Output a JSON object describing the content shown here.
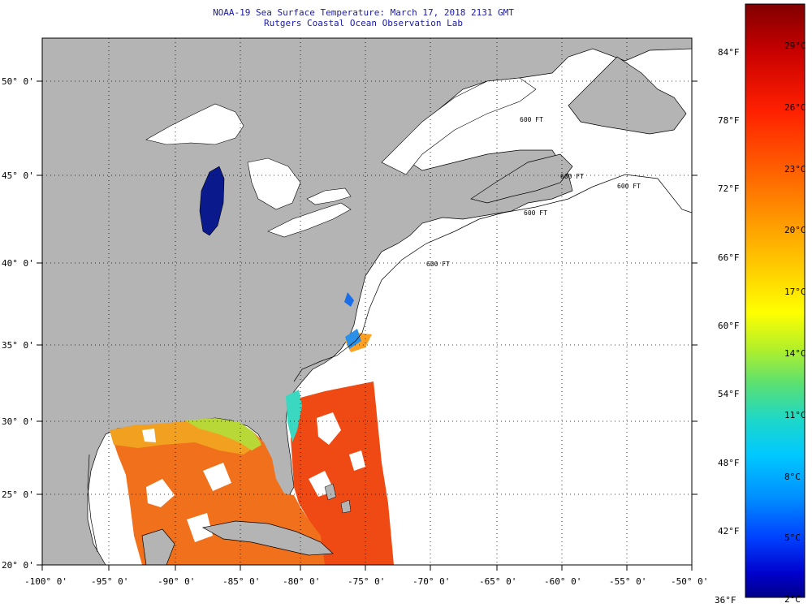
{
  "header": {
    "title": "NOAA-19 Sea Surface Temperature:  March 17, 2018 2131 GMT",
    "subtitle": "Rutgers Coastal Ocean Observation Lab"
  },
  "axes": {
    "lon_labels": [
      "-100° 0'",
      "-95° 0'",
      "-90° 0'",
      "-85° 0'",
      "-80° 0'",
      "-75° 0'",
      "-70° 0'",
      "-65° 0'",
      "-60° 0'",
      "-55° 0'",
      "-50° 0'"
    ],
    "lat_labels": [
      "50° 0'",
      "45° 0'",
      "40° 0'",
      "35° 0'",
      "30° 0'",
      "25° 0'",
      "20° 0'"
    ]
  },
  "colorbar": {
    "fahrenheit_labels": [
      "84°F",
      "78°F",
      "72°F",
      "66°F",
      "60°F",
      "54°F",
      "48°F",
      "42°F",
      "36°F"
    ],
    "celsius_labels": [
      "29°C",
      "26°C",
      "23°C",
      "20°C",
      "17°C",
      "14°C",
      "11°C",
      "8°C",
      "5°C",
      "2°C"
    ],
    "colors": [
      "#800000",
      "#c80000",
      "#ff2000",
      "#ff6000",
      "#ff9000",
      "#ffc000",
      "#ffff00",
      "#b0f000",
      "#60e060",
      "#20d8b0",
      "#00d0ff",
      "#0090ff",
      "#0040ff",
      "#0000d0",
      "#000090"
    ]
  },
  "contours": {
    "labels": [
      "600 FT",
      "600 FT",
      "600 FT",
      "600 FT",
      "600 FT"
    ]
  },
  "map_colors": {
    "land": "#b4b4b4",
    "no_data": "#ffffff",
    "grid": "#000000"
  }
}
